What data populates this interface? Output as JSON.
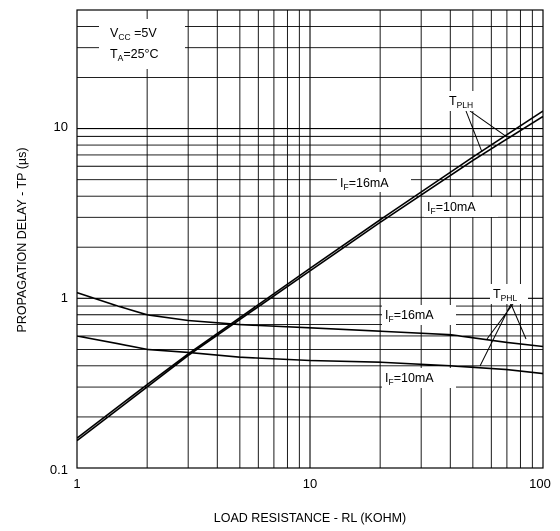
{
  "chart_data": {
    "type": "line",
    "x_scale": "log",
    "y_scale": "log",
    "xlim": [
      1,
      100
    ],
    "ylim": [
      0.1,
      50
    ],
    "grid": true,
    "xlabel": "LOAD RESISTANCE - RL (KOHM)",
    "ylabel": "PROPAGATION DELAY - TP (µs)",
    "x_ticks": [
      {
        "value": 1,
        "label": "1"
      },
      {
        "value": 10,
        "label": "10"
      },
      {
        "value": 100,
        "label": "100"
      }
    ],
    "y_ticks": [
      {
        "value": 0.1,
        "label": "0.1"
      },
      {
        "value": 1,
        "label": "1"
      },
      {
        "value": 10,
        "label": "10"
      }
    ],
    "conditions": [
      {
        "main": "V",
        "sub": "CC",
        "rest": " =5V"
      },
      {
        "main": "T",
        "sub": "A",
        "rest": "=25°C"
      }
    ],
    "group_labels": [
      {
        "main": "T",
        "sub": "PLH"
      },
      {
        "main": "T",
        "sub": "PHL"
      }
    ],
    "curve_labels": [
      {
        "main": "I",
        "sub": "F",
        "rest": "=16mA"
      },
      {
        "main": "I",
        "sub": "F",
        "rest": "=10mA"
      },
      {
        "main": "I",
        "sub": "F",
        "rest": "=16mA"
      },
      {
        "main": "I",
        "sub": "F",
        "rest": "=10mA"
      }
    ],
    "series": [
      {
        "group": "T_PLH",
        "x": [
          1,
          2,
          3,
          5,
          10,
          20,
          50,
          100
        ],
        "y": [
          0.15,
          0.31,
          0.47,
          0.77,
          1.5,
          2.9,
          6.8,
          12.7
        ]
      },
      {
        "group": "T_PLH",
        "x": [
          1,
          2,
          3,
          5,
          10,
          20,
          50,
          100
        ],
        "y": [
          0.145,
          0.3,
          0.46,
          0.75,
          1.45,
          2.8,
          6.5,
          11.8
        ]
      },
      {
        "group": "T_PHL",
        "x": [
          1,
          1.5,
          2,
          3,
          5,
          10,
          20,
          40,
          70,
          100
        ],
        "y": [
          1.08,
          0.9,
          0.8,
          0.74,
          0.7,
          0.67,
          0.64,
          0.61,
          0.55,
          0.52
        ]
      },
      {
        "group": "T_PHL",
        "x": [
          1,
          1.5,
          2,
          3,
          5,
          10,
          20,
          40,
          70,
          100
        ],
        "y": [
          0.6,
          0.54,
          0.5,
          0.48,
          0.45,
          0.43,
          0.42,
          0.4,
          0.38,
          0.36
        ]
      }
    ]
  }
}
